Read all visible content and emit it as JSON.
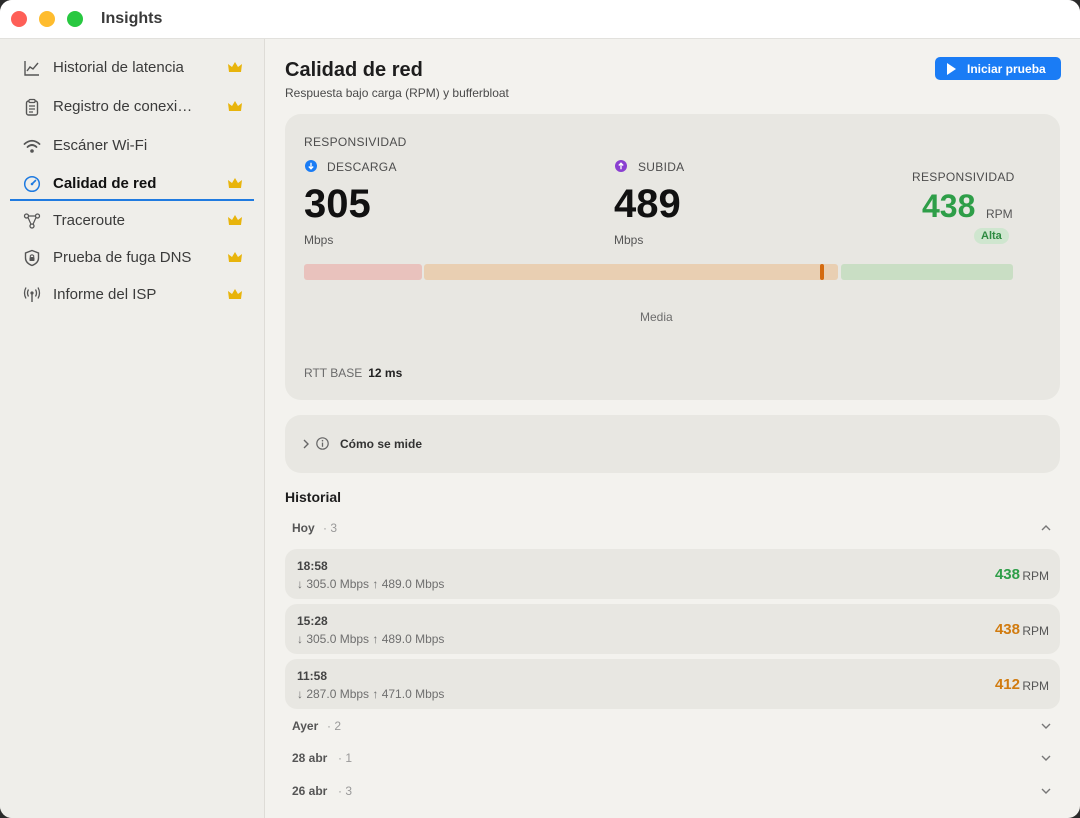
{
  "app": {
    "title": "Insights"
  },
  "sidebar": {
    "items": [
      {
        "label": "Historial de latencia",
        "icon": "chart-line-icon",
        "premium": true
      },
      {
        "label": "Registro de conexi…",
        "icon": "clipboard-icon",
        "premium": true
      },
      {
        "label": "Escáner Wi-Fi",
        "icon": "wifi-icon",
        "premium": false
      },
      {
        "label": "Calidad de red",
        "icon": "speedometer-icon",
        "premium": true,
        "active": true
      },
      {
        "label": "Traceroute",
        "icon": "network-nodes-icon",
        "premium": true
      },
      {
        "label": "Prueba de fuga DNS",
        "icon": "shield-icon",
        "premium": true
      },
      {
        "label": "Informe del ISP",
        "icon": "antenna-icon",
        "premium": true
      }
    ]
  },
  "header": {
    "title": "Calidad de red",
    "subtitle": "Respuesta bajo carga (RPM) y bufferbloat",
    "start_button": "Iniciar prueba"
  },
  "summary": {
    "section_label": "RESPONSIVIDAD",
    "download": {
      "label": "DESCARGA",
      "value": "305",
      "unit": "Mbps"
    },
    "upload": {
      "label": "SUBIDA",
      "value": "489",
      "unit": "Mbps"
    },
    "responsiveness": {
      "label": "RESPONSIVIDAD",
      "value": "438",
      "unit": "RPM",
      "badge": "Alta"
    },
    "scale_label": "Media",
    "scale_marker_fraction": 0.73,
    "rtt_label": "RTT BASE",
    "rtt_value": "12 ms"
  },
  "how_measured": {
    "label": "Cómo se mide"
  },
  "history": {
    "title": "Historial",
    "groups": [
      {
        "name": "Hoy",
        "count": "· 3",
        "expanded": true,
        "rows": [
          {
            "time": "18:58",
            "speeds": "↓ 305.0 Mbps  ↑ 489.0 Mbps",
            "rpm": "438",
            "rpm_unit": "RPM",
            "color": "#2e9e48"
          },
          {
            "time": "15:28",
            "speeds": "↓ 305.0 Mbps  ↑ 489.0 Mbps",
            "rpm": "438",
            "rpm_unit": "RPM",
            "color": "#d17b0f"
          },
          {
            "time": "11:58",
            "speeds": "↓ 287.0 Mbps  ↑ 471.0 Mbps",
            "rpm": "412",
            "rpm_unit": "RPM",
            "color": "#d17b0f"
          }
        ]
      },
      {
        "name": "Ayer",
        "count": "· 2",
        "expanded": false
      },
      {
        "name": "28 abr",
        "count": "· 1",
        "expanded": false
      },
      {
        "name": "26 abr",
        "count": "· 3",
        "expanded": false
      }
    ]
  },
  "colors": {
    "accent": "#1a7cf5",
    "good": "#2e9e48",
    "warn": "#d17b0f",
    "download_dot": "#1a7cf5",
    "upload_dot": "#8a3fd1",
    "crown": "#e8b40c"
  }
}
